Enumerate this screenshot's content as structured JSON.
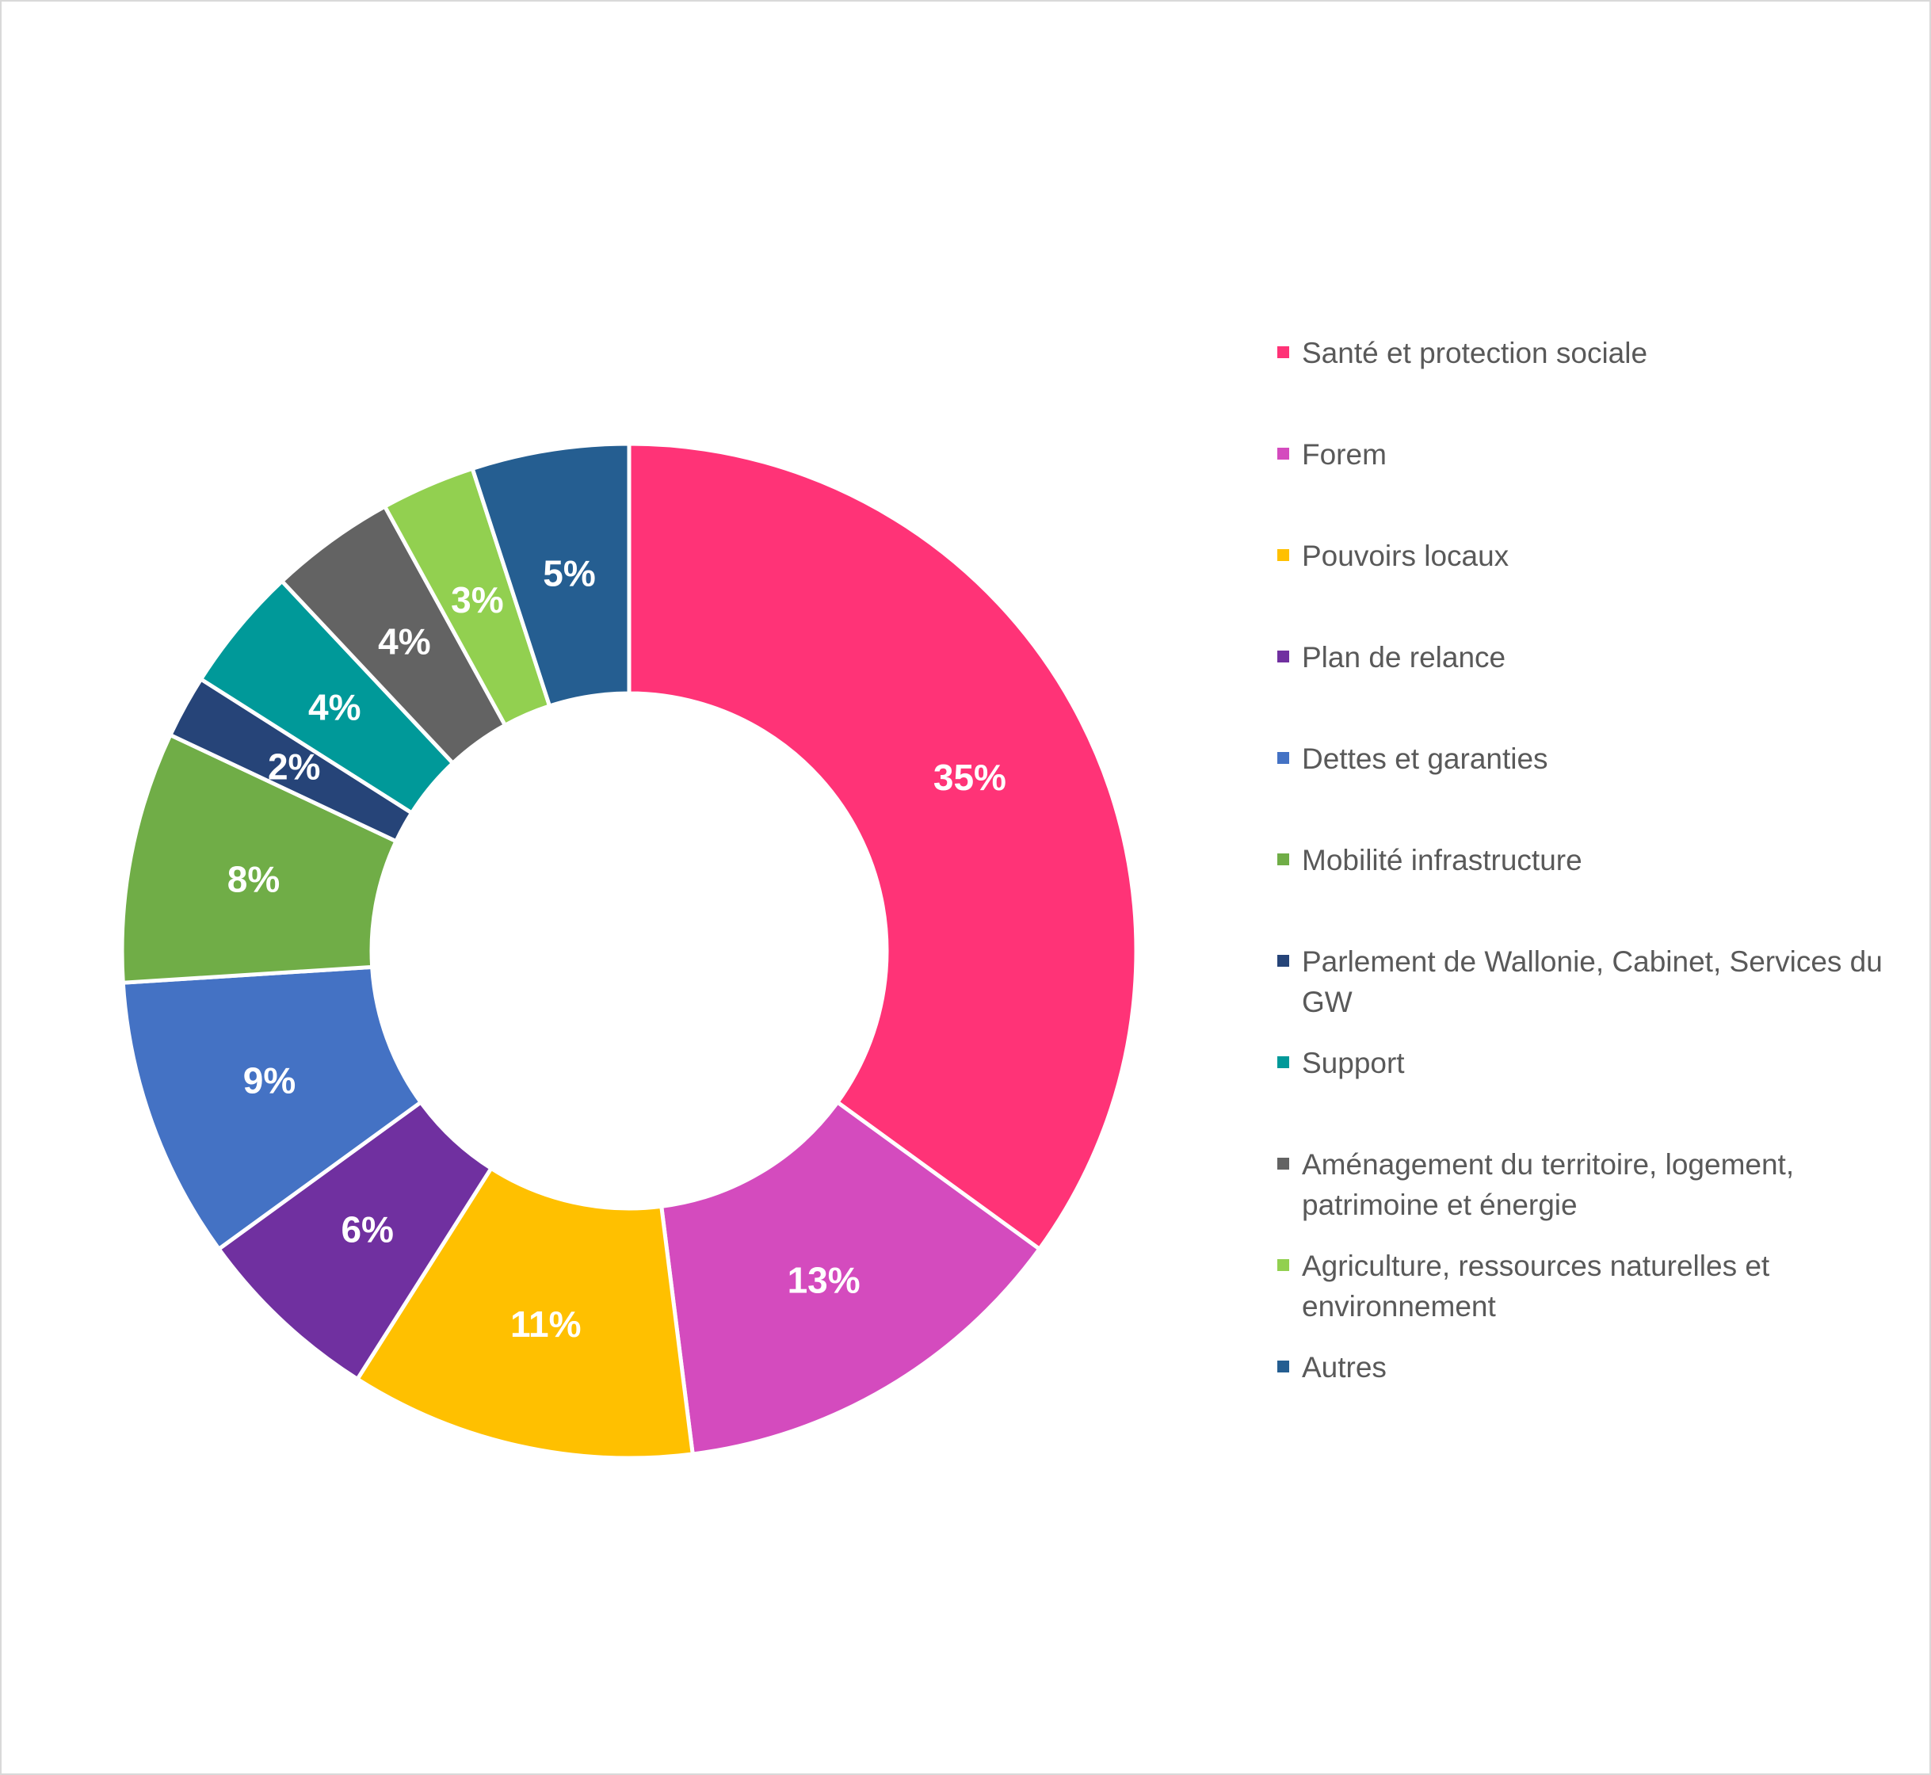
{
  "chart_data": {
    "type": "pie",
    "variant": "donut",
    "title": "",
    "categories": [
      "Santé et protection sociale",
      "Forem",
      "Pouvoirs locaux",
      "Plan de relance",
      "Dettes et garanties",
      "Mobilité infrastructure",
      "Parlement de Wallonie, Cabinet, Services du GW",
      "Support",
      "Aménagement du territoire, logement, patrimoine et énergie",
      "Agriculture, ressources naturelles et environnement",
      "Autres"
    ],
    "values": [
      35,
      13,
      11,
      6,
      9,
      8,
      2,
      4,
      4,
      3,
      5
    ],
    "value_unit": "%",
    "data_labels": [
      "35%",
      "13%",
      "11%",
      "6%",
      "9%",
      "8%",
      "2%",
      "4%",
      "4%",
      "3%",
      "5%"
    ],
    "colors": [
      "#FF3377",
      "#D44BBE",
      "#FFC000",
      "#7030A0",
      "#4472C4",
      "#70AD47",
      "#264478",
      "#009999",
      "#636363",
      "#92D050",
      "#255E91"
    ],
    "legend_position": "right"
  }
}
